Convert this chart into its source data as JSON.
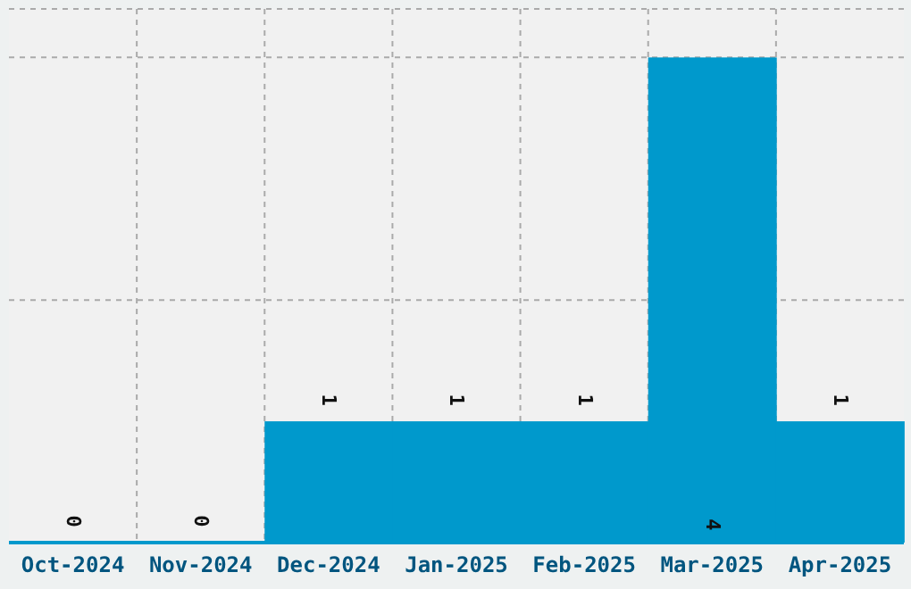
{
  "chart_data": {
    "type": "bar",
    "categories": [
      "Oct-2024",
      "Nov-2024",
      "Dec-2024",
      "Jan-2025",
      "Feb-2025",
      "Mar-2025",
      "Apr-2025"
    ],
    "values": [
      0,
      0,
      1,
      1,
      1,
      4,
      1
    ],
    "color": "#0099cc",
    "ylim": [
      0,
      4.4
    ],
    "grid": true,
    "data_labels": true,
    "tick_labels": "x"
  }
}
